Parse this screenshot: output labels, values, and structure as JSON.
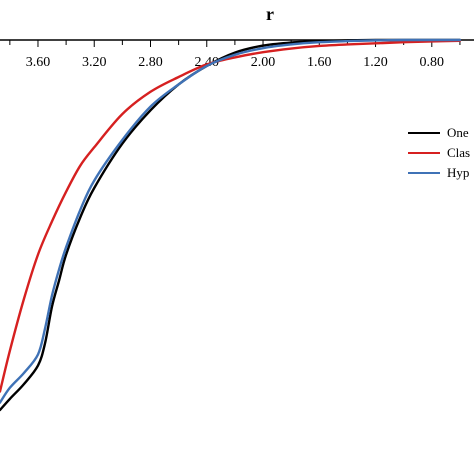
{
  "chart_data": {
    "type": "line",
    "xlabel": "r",
    "x_axis_position": "top",
    "x_reversed": true,
    "xlim": [
      0.5,
      3.87
    ],
    "ylim": [
      0,
      1
    ],
    "x_ticks": [
      3.6,
      3.2,
      2.8,
      2.4,
      2.0,
      1.6,
      1.2,
      0.8
    ],
    "x_tick_labels": [
      "3.60",
      "3.20",
      "2.80",
      "2.40",
      "2.00",
      "1.60",
      "1.20",
      "0.80"
    ],
    "legend": {
      "position": "right"
    },
    "series": [
      {
        "name": "One",
        "color": "#000000",
        "x": [
          3.87,
          3.8,
          3.7,
          3.6,
          3.55,
          3.5,
          3.45,
          3.4,
          3.3,
          3.2,
          3.0,
          2.8,
          2.6,
          2.4,
          2.2,
          2.0,
          1.8,
          1.6,
          1.4,
          1.2,
          1.0,
          0.8,
          0.6
        ],
        "y": [
          0.0,
          0.03,
          0.07,
          0.12,
          0.18,
          0.28,
          0.35,
          0.42,
          0.52,
          0.6,
          0.72,
          0.81,
          0.88,
          0.93,
          0.966,
          0.985,
          0.993,
          0.997,
          0.999,
          1.0,
          1.0,
          1.0,
          1.0
        ]
      },
      {
        "name": "Clas",
        "color": "#d62020",
        "x": [
          3.87,
          3.8,
          3.7,
          3.6,
          3.5,
          3.4,
          3.3,
          3.2,
          3.0,
          2.8,
          2.6,
          2.4,
          2.2,
          2.0,
          1.8,
          1.6,
          1.4,
          1.2,
          1.0,
          0.8,
          0.6
        ],
        "y": [
          0.05,
          0.16,
          0.3,
          0.42,
          0.51,
          0.59,
          0.66,
          0.71,
          0.8,
          0.86,
          0.9,
          0.934,
          0.953,
          0.967,
          0.977,
          0.984,
          0.988,
          0.991,
          0.994,
          0.996,
          0.998
        ]
      },
      {
        "name": "Hyp",
        "color": "#3f72b6",
        "x": [
          3.87,
          3.8,
          3.7,
          3.6,
          3.55,
          3.5,
          3.45,
          3.4,
          3.3,
          3.2,
          3.0,
          2.8,
          2.6,
          2.4,
          2.2,
          2.0,
          1.8,
          1.6,
          1.4,
          1.2,
          1.0,
          0.8,
          0.6
        ],
        "y": [
          0.02,
          0.06,
          0.1,
          0.15,
          0.22,
          0.31,
          0.38,
          0.44,
          0.54,
          0.62,
          0.73,
          0.82,
          0.88,
          0.93,
          0.96,
          0.978,
          0.988,
          0.994,
          0.997,
          0.999,
          1.0,
          1.0,
          1.0
        ]
      }
    ]
  }
}
